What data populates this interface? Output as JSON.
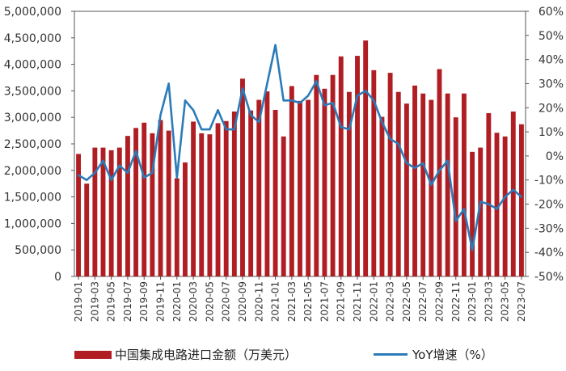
{
  "chart_data": {
    "type": "bar+line",
    "title": "",
    "categories": [
      "2019-01",
      "2019-02",
      "2019-03",
      "2019-04",
      "2019-05",
      "2019-06",
      "2019-07",
      "2019-08",
      "2019-09",
      "2019-10",
      "2019-11",
      "2019-12",
      "2020-01",
      "2020-02",
      "2020-03",
      "2020-04",
      "2020-05",
      "2020-06",
      "2020-07",
      "2020-08",
      "2020-09",
      "2020-10",
      "2020-11",
      "2020-12",
      "2021-01",
      "2021-02",
      "2021-03",
      "2021-04",
      "2021-05",
      "2021-06",
      "2021-07",
      "2021-08",
      "2021-09",
      "2021-10",
      "2021-11",
      "2021-12",
      "2022-01",
      "2022-02",
      "2022-03",
      "2022-04",
      "2022-05",
      "2022-06",
      "2022-07",
      "2022-08",
      "2022-09",
      "2022-10",
      "2022-11",
      "2022-12",
      "2023-01",
      "2023-02",
      "2023-03",
      "2023-04",
      "2023-05",
      "2023-06",
      "2023-07"
    ],
    "x_tick_labels": [
      "2019-01",
      "2019-03",
      "2019-05",
      "2019-07",
      "2019-09",
      "2019-11",
      "2020-01",
      "2020-03",
      "2020-05",
      "2020-07",
      "2020-09",
      "2020-11",
      "2021-01",
      "2021-03",
      "2021-05",
      "2021-07",
      "2021-09",
      "2021-11",
      "2022-01",
      "2022-03",
      "2022-05",
      "2022-07",
      "2022-09",
      "2022-11",
      "2023-01",
      "2023-03",
      "2023-05",
      "2023-07"
    ],
    "left_axis": {
      "ylim": [
        0,
        5000000
      ],
      "tick_labels": [
        "0",
        "500,000",
        "1,000,000",
        "1,500,000",
        "2,000,000",
        "2,500,000",
        "3,000,000",
        "3,500,000",
        "4,000,000",
        "4,500,000",
        "5,000,000"
      ]
    },
    "right_axis": {
      "ylim": [
        -50,
        60
      ],
      "tick_labels": [
        "-50%",
        "-40%",
        "-30%",
        "-20%",
        "-10%",
        "0%",
        "10%",
        "20%",
        "30%",
        "40%",
        "50%",
        "60%"
      ]
    },
    "series": [
      {
        "name": "中国集成电路进口金额（万美元）",
        "type": "bar",
        "axis": "left",
        "color": "#b01e23",
        "values": [
          2310000,
          1750000,
          2430000,
          2430000,
          2380000,
          2430000,
          2650000,
          2800000,
          2900000,
          2700000,
          2950000,
          2750000,
          1850000,
          2150000,
          2920000,
          2700000,
          2680000,
          2890000,
          2930000,
          3110000,
          3730000,
          3130000,
          3330000,
          3490000,
          3140000,
          2640000,
          3590000,
          3310000,
          3330000,
          3800000,
          3540000,
          3800000,
          4150000,
          3480000,
          4160000,
          4450000,
          3890000,
          3010000,
          3840000,
          3480000,
          3260000,
          3600000,
          3450000,
          3330000,
          3910000,
          3450000,
          3000000,
          3450000,
          2350000,
          2430000,
          3080000,
          2710000,
          2640000,
          3110000,
          2870000
        ]
      },
      {
        "name": "YoY增速（%）",
        "type": "line",
        "axis": "right",
        "color": "#2b7bb9",
        "values": [
          -8,
          -10,
          -7,
          -2,
          -10,
          -4,
          -7,
          2,
          -9,
          -7,
          17,
          30,
          -9,
          23,
          19,
          11,
          11,
          19,
          11,
          11,
          28,
          17,
          14,
          30,
          46,
          23,
          23,
          22,
          25,
          31,
          21,
          22,
          12,
          11,
          25,
          27,
          23,
          14,
          7,
          5,
          -3,
          -5,
          -3,
          -12,
          -6,
          -2,
          -27,
          -22,
          -39,
          -19,
          -20,
          -22,
          -17,
          -14,
          -17
        ]
      }
    ],
    "grid": false,
    "legend_position": "bottom"
  }
}
